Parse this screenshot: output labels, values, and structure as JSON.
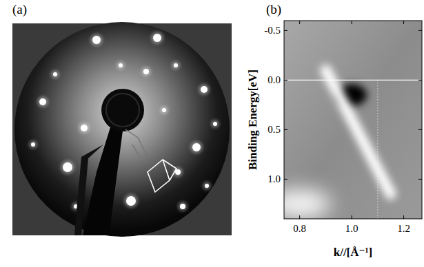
{
  "panel_a": {
    "label": "(a)"
  },
  "chart_data": {
    "type": "image",
    "title": "(b)",
    "x_label": "k//[Å⁻¹]",
    "y_label": "Binding Energy[eV]",
    "xlim": [
      0.74,
      1.27
    ],
    "ylim": [
      -0.6,
      1.4
    ],
    "xticks": [
      0.8,
      {
        "value": 1.0,
        "label": "1.0"
      },
      1.2
    ],
    "yticks": [
      -0.5,
      {
        "value": 0,
        "label": "0.0"
      },
      0.5,
      {
        "value": 1.0,
        "label": "1.0"
      }
    ],
    "fermi_level": 0,
    "k_marker": 1.1,
    "band": {
      "k": [
        0.9,
        0.95,
        1.0,
        1.05,
        1.1,
        1.15
      ],
      "E": [
        -0.1,
        0.15,
        0.4,
        0.65,
        0.9,
        1.15
      ]
    },
    "dark_spot": {
      "k": 1.0,
      "E": 0.15
    },
    "bright_spot": {
      "k": 0.8,
      "E": 1.25
    }
  }
}
